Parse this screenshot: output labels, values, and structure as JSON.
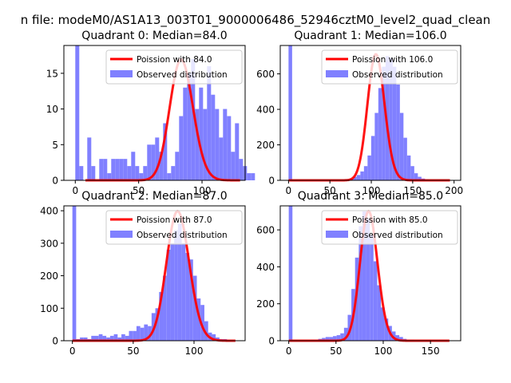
{
  "figure": {
    "suptitle": "n file: modeM0/AS1A13_003T01_9000006486_52946cztM0_level2_quad_clean"
  },
  "colors": {
    "observed": "#8080ff",
    "poisson": "#ff0000",
    "axis": "#000000",
    "legend_border": "#cccccc"
  },
  "chart_data": [
    {
      "type": "bar",
      "title": "Quadrant 0: Median=84.0",
      "xlim": [
        -9,
        134
      ],
      "ylim": [
        0,
        18.9
      ],
      "xticks": [
        0,
        50,
        100
      ],
      "yticks": [
        0,
        5,
        10,
        15
      ],
      "bin_start": 0,
      "bin_width": 3.15,
      "counts": [
        19,
        2,
        0,
        6,
        2,
        0,
        3,
        3,
        1,
        3,
        3,
        3,
        3,
        2,
        4,
        2,
        1,
        2,
        5,
        5,
        6,
        4,
        8,
        1,
        2,
        4,
        9,
        13,
        15,
        17,
        10,
        13,
        10,
        16,
        12,
        10,
        6,
        10,
        9,
        4,
        8,
        3,
        2,
        1,
        1
      ],
      "legend": [
        {
          "label": "Poission with 84.0",
          "kind": "line"
        },
        {
          "label": "Observed distribution",
          "kind": "patch"
        }
      ],
      "poisson": {
        "mean": 84.0,
        "peak": 16.9,
        "x": [
          8,
          130
        ]
      }
    },
    {
      "type": "bar",
      "title": "Quadrant 1: Median=106.0",
      "xlim": [
        -10,
        208
      ],
      "ylim": [
        0,
        760
      ],
      "xticks": [
        0,
        50,
        100,
        150,
        200
      ],
      "yticks": [
        0,
        200,
        400,
        600
      ],
      "bin_start": 0,
      "bin_width": 4.34,
      "counts": [
        760,
        0,
        0,
        0,
        0,
        0,
        0,
        0,
        0,
        0,
        0,
        0,
        1,
        1,
        2,
        3,
        5,
        10,
        20,
        30,
        50,
        80,
        140,
        250,
        380,
        520,
        640,
        700,
        690,
        640,
        540,
        380,
        240,
        140,
        80,
        40,
        20,
        10,
        5,
        2,
        1,
        1,
        0,
        0,
        0
      ],
      "legend": [
        {
          "label": "Poission with 106.0",
          "kind": "line"
        },
        {
          "label": "Observed distribution",
          "kind": "patch"
        }
      ],
      "poisson": {
        "mean": 106.0,
        "peak": 710,
        "x": [
          0,
          195
        ]
      }
    },
    {
      "type": "bar",
      "title": "Quadrant 2: Median=87.0",
      "xlim": [
        -7,
        142
      ],
      "ylim": [
        0,
        415
      ],
      "xticks": [
        0,
        50,
        100
      ],
      "yticks": [
        0,
        100,
        200,
        300,
        400
      ],
      "bin_start": 0,
      "bin_width": 3.1,
      "counts": [
        415,
        5,
        10,
        10,
        5,
        15,
        15,
        20,
        15,
        10,
        15,
        20,
        10,
        20,
        15,
        30,
        30,
        45,
        40,
        50,
        45,
        85,
        100,
        150,
        200,
        280,
        300,
        340,
        360,
        300,
        270,
        250,
        200,
        130,
        110,
        60,
        25,
        20,
        10,
        5,
        5,
        0,
        0,
        0
      ],
      "legend": [
        {
          "label": "Poission with 87.0",
          "kind": "line"
        },
        {
          "label": "Observed distribution",
          "kind": "patch"
        }
      ],
      "poisson": {
        "mean": 87.0,
        "peak": 398,
        "x": [
          0,
          134
        ]
      }
    },
    {
      "type": "bar",
      "title": "Quadrant 3: Median=85.0",
      "xlim": [
        -9,
        182
      ],
      "ylim": [
        0,
        730
      ],
      "xticks": [
        0,
        50,
        100,
        150
      ],
      "yticks": [
        0,
        200,
        400,
        600
      ],
      "bin_start": 0,
      "bin_width": 3.9,
      "counts": [
        730,
        0,
        0,
        0,
        0,
        0,
        5,
        5,
        10,
        15,
        20,
        20,
        25,
        30,
        40,
        70,
        140,
        280,
        450,
        620,
        700,
        660,
        570,
        430,
        300,
        180,
        120,
        80,
        50,
        30,
        20,
        10,
        5,
        5,
        0,
        0,
        0,
        0,
        0,
        0,
        0,
        0,
        0,
        0
      ],
      "legend": [
        {
          "label": "Poission with 85.0",
          "kind": "line"
        },
        {
          "label": "Observed distribution",
          "kind": "patch"
        }
      ],
      "poisson": {
        "mean": 85.0,
        "peak": 700,
        "x": [
          0,
          170
        ]
      }
    }
  ]
}
